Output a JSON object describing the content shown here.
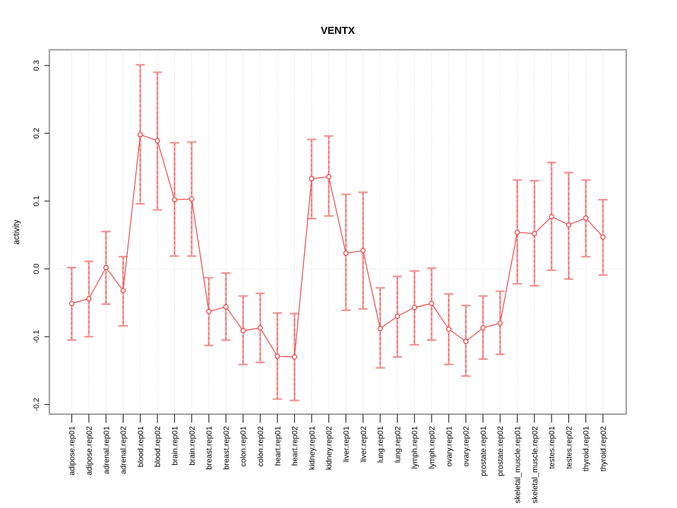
{
  "window": {
    "background": "#ffffff"
  },
  "chart_data": {
    "type": "line",
    "title": "VENTX",
    "ylabel": "activity",
    "xlabel": "",
    "legend": "none",
    "categories": [
      "adipose.rep01",
      "adipose.rep02",
      "adrenal.rep01",
      "adrenal.rep02",
      "blood.rep01",
      "blood.rep02",
      "brain.rep01",
      "brain.rep02",
      "breast.rep01",
      "breast.rep02",
      "colon.rep01",
      "colon.rep02",
      "heart.rep01",
      "heart.rep02",
      "kidney.rep01",
      "kidney.rep02",
      "liver.rep01",
      "liver.rep02",
      "lung.rep01",
      "lung.rep02",
      "lymph.rep01",
      "lymph.rep02",
      "ovary.rep01",
      "ovary.rep02",
      "prostate.rep01",
      "prostate.rep02",
      "skeletal_muscle.rep01",
      "skeletal_muscle.rep02",
      "testes.rep01",
      "testes.rep02",
      "thyroid.rep01",
      "thyroid.rep02"
    ],
    "series": [
      {
        "name": "activity",
        "values": [
          -0.051,
          -0.044,
          0.002,
          -0.032,
          0.198,
          0.189,
          0.102,
          0.103,
          -0.063,
          -0.056,
          -0.091,
          -0.087,
          -0.129,
          -0.13,
          0.133,
          0.136,
          0.023,
          0.027,
          -0.088,
          -0.07,
          -0.057,
          -0.051,
          -0.089,
          -0.107,
          -0.087,
          -0.08,
          0.054,
          0.052,
          0.077,
          0.065,
          0.075,
          0.047
        ],
        "error_low": [
          -0.105,
          -0.1,
          -0.052,
          -0.084,
          0.096,
          0.087,
          0.019,
          0.019,
          -0.113,
          -0.105,
          -0.141,
          -0.138,
          -0.192,
          -0.194,
          0.074,
          0.078,
          -0.061,
          -0.059,
          -0.146,
          -0.13,
          -0.112,
          -0.105,
          -0.141,
          -0.158,
          -0.133,
          -0.126,
          -0.022,
          -0.025,
          -0.002,
          -0.015,
          0.018,
          -0.009
        ],
        "error_high": [
          0.002,
          0.011,
          0.055,
          0.018,
          0.301,
          0.29,
          0.186,
          0.187,
          -0.013,
          -0.006,
          -0.04,
          -0.036,
          -0.065,
          -0.066,
          0.191,
          0.196,
          0.11,
          0.113,
          -0.028,
          -0.011,
          -0.003,
          0.001,
          -0.037,
          -0.054,
          -0.04,
          -0.033,
          0.131,
          0.13,
          0.157,
          0.142,
          0.131,
          0.102
        ]
      }
    ],
    "ylim": [
      -0.214,
      0.324
    ],
    "y_ticks": [
      {
        "label": "0.3",
        "value": 0.3
      },
      {
        "label": "0.2",
        "value": 0.2
      },
      {
        "label": "0.1",
        "value": 0.1
      },
      {
        "label": "0.0",
        "value": 0.0
      },
      {
        "label": "-0.1",
        "value": -0.1
      },
      {
        "label": "-0.2",
        "value": -0.2
      }
    ],
    "grid": {
      "vertical_per_category": true,
      "horizontal_zero_line": true,
      "style": "dotted"
    },
    "colors": {
      "point_line": "#ee4545",
      "error_bar_fill": "#f5a6a6",
      "error_bar_dash": "#ee4545",
      "error_cap": "#f29090",
      "grid": "#d2d2d2",
      "axis_box": "#888888",
      "tick": "#2a2a2a",
      "text": "#000000",
      "point_fill": "#ffffff"
    }
  }
}
